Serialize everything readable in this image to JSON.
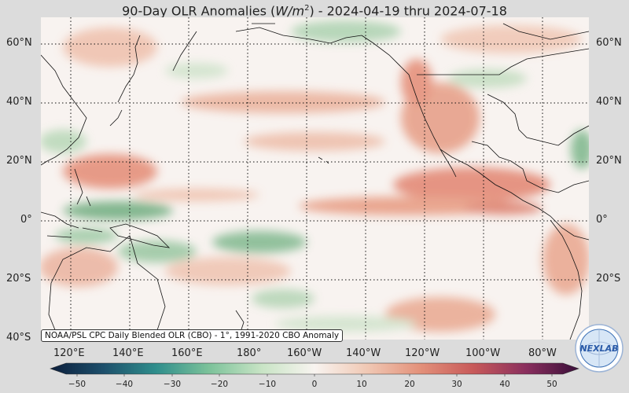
{
  "title": "90-Day OLR Anomalies (W/m2) - 2024-04-19 thru 2024-07-18",
  "title_parts": {
    "pre": "90-Day OLR Anomalies (",
    "var": "W/m",
    "sup": "2",
    "post": ") - 2024-04-19 thru 2024-07-18"
  },
  "lat_labels": [
    "60°N",
    "40°N",
    "20°N",
    "0°",
    "20°S",
    "40°S"
  ],
  "lon_labels": [
    "120°E",
    "140°E",
    "160°E",
    "180°",
    "160°W",
    "140°W",
    "120°W",
    "100°W",
    "80°W"
  ],
  "credit": "NOAA/PSL CPC Daily Blended OLR (CBO) - 1°, 1991-2020 CBO Anomaly",
  "colorbar": {
    "ticks": [
      "−50",
      "−40",
      "−30",
      "−20",
      "−10",
      "0",
      "10",
      "20",
      "30",
      "40",
      "50"
    ],
    "min": -50,
    "max": 50,
    "colors": [
      "#0b1e3c",
      "#1d4f6b",
      "#2f8e8c",
      "#7cc29a",
      "#c8e4c5",
      "#f8f4f0",
      "#f0c8b4",
      "#e3917a",
      "#c85a5a",
      "#8a2f5e",
      "#3a0f3a"
    ]
  },
  "logo_text": "NEXLAB",
  "colors": {
    "positive": "#e79578",
    "negative": "#79b487",
    "neutral": "#f8f3f0",
    "background": "#dcdcdc"
  }
}
